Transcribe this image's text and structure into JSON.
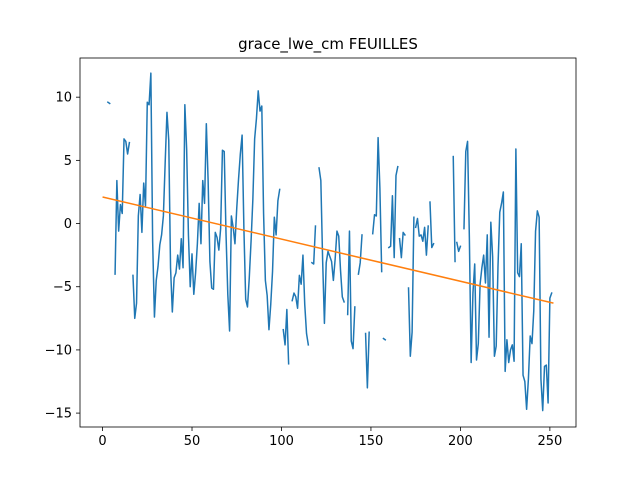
{
  "chart_data": {
    "type": "line",
    "title": "grace_lwe_cm FEUILLES",
    "xlabel": "",
    "ylabel": "",
    "xlim": [
      -12.6,
      264.6
    ],
    "ylim": [
      -16.1,
      13.1
    ],
    "xticks": [
      0,
      50,
      100,
      150,
      200,
      250
    ],
    "yticks": [
      -15,
      -10,
      -5,
      0,
      5,
      10
    ],
    "xtick_labels": [
      "0",
      "50",
      "100",
      "150",
      "200",
      "250"
    ],
    "ytick_labels": [
      "−15",
      "−10",
      "−5",
      "0",
      "5",
      "10"
    ],
    "grid": false,
    "legend": "none",
    "series": [
      {
        "color": "#1f77b4",
        "segments": [
          [
            [
              3,
              9.6
            ],
            [
              4,
              9.5
            ]
          ],
          [
            [
              7,
              -4.0
            ],
            [
              8,
              3.4
            ],
            [
              9,
              -0.6
            ],
            [
              10,
              1.5
            ],
            [
              11,
              0.8
            ],
            [
              12,
              6.7
            ],
            [
              13,
              6.5
            ],
            [
              14,
              5.5
            ],
            [
              15,
              6.4
            ]
          ],
          [
            [
              17,
              -4.1
            ],
            [
              18,
              -7.5
            ],
            [
              19,
              -6.3
            ],
            [
              20,
              0.6
            ],
            [
              21,
              2.3
            ],
            [
              22,
              -0.7
            ],
            [
              23,
              3.2
            ],
            [
              24,
              1.4
            ],
            [
              25,
              9.6
            ],
            [
              26,
              9.4
            ],
            [
              27,
              11.9
            ],
            [
              28,
              -1.4
            ],
            [
              29,
              -7.4
            ],
            [
              30,
              -4.5
            ],
            [
              31,
              -3.4
            ],
            [
              32,
              -1.7
            ],
            [
              33,
              -0.9
            ],
            [
              34,
              0.6
            ],
            [
              35,
              4.8
            ],
            [
              36,
              8.8
            ],
            [
              37,
              6.6
            ],
            [
              38,
              -3.5
            ],
            [
              39,
              -7.0
            ],
            [
              40,
              -4.3
            ],
            [
              41,
              -3.9
            ],
            [
              42,
              -2.5
            ],
            [
              43,
              -3.6
            ],
            [
              44,
              -1.2
            ],
            [
              45,
              -3.5
            ],
            [
              46,
              9.4
            ],
            [
              47,
              5.9
            ],
            [
              48,
              -0.9
            ],
            [
              49,
              -5.0
            ],
            [
              50,
              -2.4
            ],
            [
              51,
              -5.6
            ],
            [
              52,
              -3.9
            ],
            [
              53,
              -1.6
            ],
            [
              54,
              1.6
            ],
            [
              55,
              -1.6
            ],
            [
              56,
              3.4
            ],
            [
              57,
              1.6
            ],
            [
              58,
              7.9
            ],
            [
              59,
              3.4
            ],
            [
              60,
              -3.0
            ],
            [
              61,
              -5.1
            ],
            [
              62,
              -5.2
            ],
            [
              63,
              -0.7
            ],
            [
              64,
              -1.1
            ],
            [
              65,
              -2.1
            ],
            [
              66,
              -0.4
            ],
            [
              67,
              5.8
            ],
            [
              68,
              5.7
            ],
            [
              69,
              -0.8
            ],
            [
              70,
              -5.6
            ],
            [
              71,
              -8.5
            ],
            [
              72,
              0.6
            ],
            [
              73,
              -0.3
            ],
            [
              74,
              -1.6
            ],
            [
              75,
              1.2
            ],
            [
              76,
              3.5
            ],
            [
              77,
              5.5
            ],
            [
              78,
              7.0
            ],
            [
              79,
              -0.4
            ],
            [
              80,
              -6.0
            ],
            [
              81,
              -6.6
            ],
            [
              82,
              -4.3
            ],
            [
              83,
              -1.4
            ],
            [
              84,
              1.9
            ],
            [
              85,
              6.7
            ],
            [
              86,
              8.3
            ],
            [
              87,
              10.5
            ],
            [
              88,
              8.9
            ],
            [
              89,
              9.3
            ],
            [
              90,
              0.8
            ],
            [
              91,
              -4.5
            ],
            [
              92,
              -5.7
            ],
            [
              93,
              -8.4
            ],
            [
              94,
              -6.4
            ],
            [
              95,
              -3.8
            ],
            [
              96,
              0.5
            ],
            [
              97,
              -0.9
            ],
            [
              98,
              1.8
            ],
            [
              99,
              2.7
            ]
          ],
          [
            [
              101,
              -8.4
            ],
            [
              102,
              -9.6
            ],
            [
              103,
              -6.8
            ],
            [
              104,
              -11.1
            ]
          ],
          [
            [
              106,
              -6.1
            ],
            [
              107,
              -5.5
            ],
            [
              108,
              -5.8
            ],
            [
              109,
              -6.7
            ],
            [
              110,
              -4.1
            ],
            [
              111,
              -4.8
            ],
            [
              112,
              -2.5
            ],
            [
              113,
              -6.4
            ],
            [
              114,
              -8.7
            ],
            [
              115,
              -9.6
            ]
          ],
          [
            [
              117,
              -3.1
            ],
            [
              118,
              -3.2
            ],
            [
              119,
              -0.2
            ]
          ],
          [
            [
              121,
              4.4
            ],
            [
              122,
              3.4
            ],
            [
              123,
              -2.9
            ],
            [
              124,
              -7.9
            ],
            [
              125,
              -3.1
            ],
            [
              126,
              -2.2
            ],
            [
              127,
              -2.6
            ],
            [
              128,
              -3.0
            ],
            [
              129,
              -4.5
            ],
            [
              130,
              -2.8
            ],
            [
              131,
              -0.6
            ],
            [
              132,
              -1.0
            ],
            [
              133,
              -3.7
            ],
            [
              134,
              -5.8
            ],
            [
              135,
              -6.2
            ]
          ],
          [
            [
              137,
              -7.2
            ],
            [
              138,
              -0.6
            ],
            [
              139,
              -9.3
            ],
            [
              140,
              -9.9
            ],
            [
              141,
              -6.6
            ]
          ],
          [
            [
              143,
              -4.0
            ],
            [
              144,
              -3.1
            ],
            [
              145,
              -0.9
            ]
          ],
          [
            [
              147,
              -8.7
            ],
            [
              148,
              -13.0
            ],
            [
              149,
              -8.6
            ]
          ],
          [
            [
              151,
              -0.8
            ],
            [
              152,
              0.7
            ],
            [
              153,
              0.6
            ],
            [
              154,
              6.8
            ],
            [
              155,
              2.8
            ],
            [
              156,
              -3.8
            ]
          ],
          [
            [
              157,
              -9.1
            ],
            [
              158,
              -9.2
            ]
          ],
          [
            [
              160,
              -1.9
            ],
            [
              161,
              -1.8
            ],
            [
              162,
              2.2
            ],
            [
              163,
              -2.7
            ],
            [
              164,
              3.8
            ],
            [
              165,
              4.5
            ]
          ],
          [
            [
              166,
              -1.2
            ],
            [
              167,
              -2.7
            ],
            [
              168,
              -0.7
            ],
            [
              169,
              -0.9
            ]
          ],
          [
            [
              171,
              -5.1
            ],
            [
              172,
              -10.5
            ],
            [
              173,
              -8.6
            ],
            [
              174,
              0.5
            ]
          ],
          [
            [
              175,
              -0.3
            ],
            [
              176,
              0.4
            ],
            [
              177,
              -1.0
            ],
            [
              178,
              -0.9
            ],
            [
              179,
              -1.4
            ],
            [
              180,
              -0.3
            ],
            [
              181,
              -2.5
            ],
            [
              182,
              -0.2
            ]
          ],
          [
            [
              183,
              1.7
            ],
            [
              184,
              -1.9
            ],
            [
              185,
              -1.6
            ]
          ],
          [
            [
              196,
              5.3
            ],
            [
              197,
              -3.0
            ]
          ],
          [
            [
              198,
              -1.5
            ],
            [
              199,
              -2.2
            ],
            [
              200,
              -1.8
            ]
          ],
          [
            [
              202,
              -0.4
            ],
            [
              203,
              5.7
            ],
            [
              204,
              6.5
            ],
            [
              205,
              -1.1
            ],
            [
              206,
              -11.0
            ],
            [
              207,
              -5.5
            ],
            [
              208,
              -3.2
            ],
            [
              209,
              -10.8
            ],
            [
              210,
              -9.5
            ],
            [
              211,
              -4.8
            ],
            [
              212,
              -3.5
            ],
            [
              213,
              -2.5
            ],
            [
              214,
              -4.7
            ],
            [
              215,
              -0.9
            ],
            [
              216,
              -9.0
            ],
            [
              217,
              0.1
            ],
            [
              218,
              -2.6
            ],
            [
              219,
              -10.5
            ],
            [
              220,
              -9.7
            ],
            [
              221,
              -3.4
            ],
            [
              222,
              0.9
            ],
            [
              223,
              1.6
            ],
            [
              224,
              2.5
            ],
            [
              225,
              -11.7
            ],
            [
              226,
              -9.2
            ],
            [
              227,
              -11.0
            ],
            [
              228,
              -10.0
            ],
            [
              229,
              -9.6
            ],
            [
              230,
              -10.9
            ],
            [
              231,
              5.9
            ],
            [
              232,
              -3.9
            ],
            [
              233,
              -4.2
            ],
            [
              234,
              -1.6
            ],
            [
              235,
              -12.0
            ],
            [
              236,
              -12.5
            ],
            [
              237,
              -14.7
            ],
            [
              238,
              -12.3
            ],
            [
              239,
              -8.9
            ],
            [
              240,
              -9.5
            ],
            [
              241,
              -6.9
            ],
            [
              242,
              -0.6
            ],
            [
              243,
              1.0
            ],
            [
              244,
              0.5
            ],
            [
              245,
              -12.3
            ],
            [
              246,
              -14.8
            ],
            [
              247,
              -11.3
            ],
            [
              248,
              -11.2
            ],
            [
              249,
              -14.2
            ],
            [
              250,
              -5.9
            ],
            [
              251,
              -5.5
            ]
          ]
        ]
      },
      {
        "color": "#ff7f0e",
        "points": [
          [
            0,
            2.1
          ],
          [
            252,
            -6.3
          ]
        ]
      }
    ]
  }
}
